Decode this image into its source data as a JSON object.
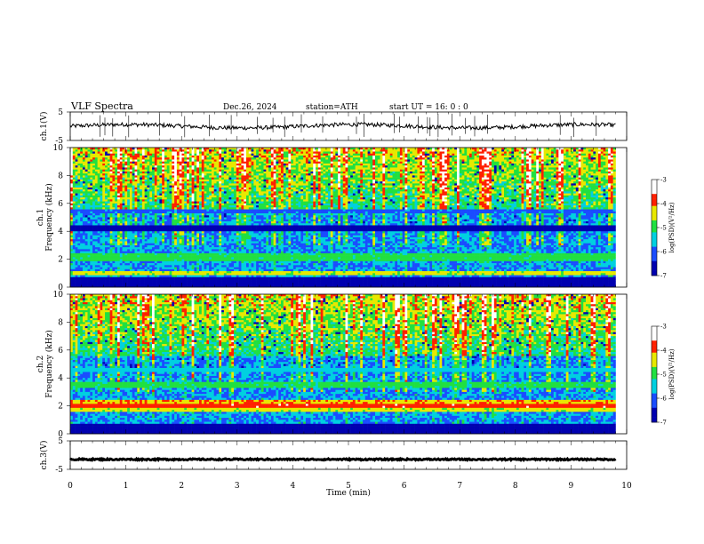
{
  "header": {
    "title": "VLF  Spectra",
    "date": "Dec.26, 2024",
    "station": "station=ATH",
    "start": "start  UT  =    16: 0  : 0"
  },
  "chart_data": [
    {
      "type": "line",
      "title": "",
      "ylabel": "ch.1(V)",
      "ylim": [
        -5,
        5
      ],
      "yticks": [
        "5",
        "-5"
      ],
      "xlim": [
        0,
        10
      ],
      "baseline": 0,
      "color": "#000000"
    },
    {
      "type": "heatmap",
      "ylabel": "ch.1\nFrequency (kHz)",
      "ylabel_lines": [
        "ch.1",
        "Frequency  (kHz)"
      ],
      "ylim": [
        0,
        10
      ],
      "yticks": [
        "0",
        "2",
        "4",
        "6",
        "8",
        "10"
      ],
      "xlim": [
        0,
        10
      ],
      "data_end_min": 9.8,
      "colorbar": {
        "label": "log(PSD)(V²/Hz)",
        "range": [
          -7,
          -3
        ],
        "ticks": [
          "-3",
          "-4",
          "-5",
          "-6",
          "-7"
        ]
      },
      "bands_khz": [
        {
          "f": 0.1,
          "level": -7
        },
        {
          "f": 0.5,
          "level": -7
        },
        {
          "f": 1.0,
          "level": -4.5
        },
        {
          "f": 2.0,
          "level": -5
        },
        {
          "f": 2.2,
          "level": -5
        },
        {
          "f": 4.2,
          "level": -7
        },
        {
          "f": 5.4,
          "level": -6
        }
      ]
    },
    {
      "type": "heatmap",
      "ylabel": "ch.2\nFrequency (kHz)",
      "ylabel_lines": [
        "ch.2",
        "Frequency  (kHz)"
      ],
      "ylim": [
        0,
        10
      ],
      "yticks": [
        "0",
        "2",
        "4",
        "6",
        "8",
        "10"
      ],
      "xlim": [
        0,
        10
      ],
      "data_end_min": 9.8,
      "colorbar": {
        "label": "log(PSD)(V²/Hz)",
        "range": [
          -7,
          -3
        ],
        "ticks": [
          "-3",
          "-4",
          "-5",
          "-6",
          "-7"
        ]
      },
      "bands_khz": [
        {
          "f": 0.1,
          "level": -7
        },
        {
          "f": 0.5,
          "level": -7
        },
        {
          "f": 1.8,
          "level": -4.5
        },
        {
          "f": 2.0,
          "level": -3.8
        },
        {
          "f": 2.3,
          "level": -4.2
        },
        {
          "f": 3.5,
          "level": -5
        },
        {
          "f": 4.6,
          "level": -5.5
        }
      ]
    },
    {
      "type": "line",
      "ylabel": "ch.3(V)",
      "ylim": [
        -5,
        5
      ],
      "yticks": [
        "5",
        "-5"
      ],
      "xlim": [
        0,
        10
      ],
      "baseline": -1.5,
      "color": "#000000"
    }
  ],
  "x_axis": {
    "label": "Time  (min)",
    "ticks": [
      "0",
      "1",
      "2",
      "3",
      "4",
      "5",
      "6",
      "7",
      "8",
      "9",
      "10"
    ]
  }
}
